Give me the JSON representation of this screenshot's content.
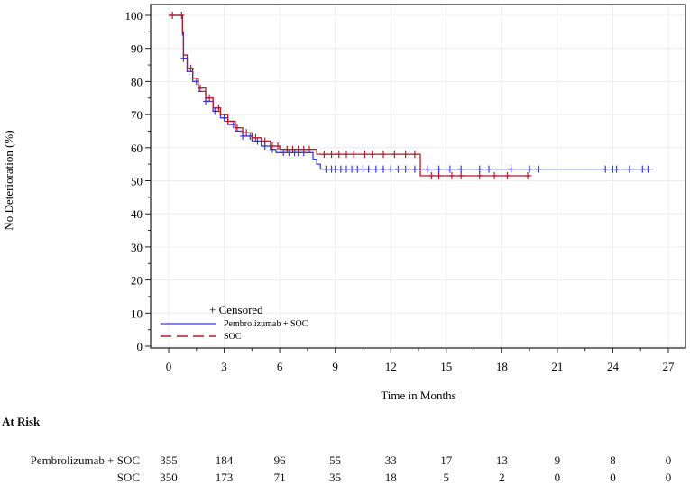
{
  "chart_data": {
    "type": "line",
    "subtype": "kaplan-meier step",
    "xlabel": "Time in Months",
    "ylabel": "No Deterioration (%)",
    "xlim": [
      0,
      27
    ],
    "ylim": [
      0,
      100
    ],
    "xticks": [
      0,
      3,
      6,
      9,
      12,
      15,
      18,
      21,
      24,
      27
    ],
    "yticks": [
      0,
      10,
      20,
      30,
      40,
      50,
      60,
      70,
      80,
      90,
      100
    ],
    "grid": true,
    "legend_position": "bottom-left",
    "legend": {
      "censored_label": "Censored"
    },
    "series": [
      {
        "name": "Pembrolizumab + SOC",
        "color": "#3b3bd6",
        "linestyle": "solid",
        "points": [
          [
            0,
            100
          ],
          [
            0.7,
            100
          ],
          [
            0.75,
            94
          ],
          [
            0.8,
            87
          ],
          [
            1.0,
            83
          ],
          [
            1.3,
            80
          ],
          [
            1.6,
            77
          ],
          [
            2.0,
            74
          ],
          [
            2.4,
            71
          ],
          [
            2.8,
            69
          ],
          [
            3.2,
            67
          ],
          [
            3.6,
            65
          ],
          [
            4.0,
            63.5
          ],
          [
            4.5,
            62
          ],
          [
            5.0,
            60.5
          ],
          [
            5.5,
            59.5
          ],
          [
            5.8,
            58.5
          ],
          [
            7.6,
            58.5
          ],
          [
            7.8,
            56.5
          ],
          [
            8.0,
            55
          ],
          [
            8.2,
            53.5
          ],
          [
            26.2,
            53.5
          ]
        ],
        "censored": [
          0.8,
          1.1,
          1.5,
          2.0,
          2.5,
          3.0,
          3.5,
          4.0,
          4.4,
          4.8,
          5.2,
          5.6,
          6.2,
          6.5,
          6.8,
          7.0,
          7.3,
          8.5,
          8.8,
          9.0,
          9.3,
          9.6,
          9.9,
          10.2,
          10.5,
          10.8,
          11.2,
          11.6,
          12.0,
          12.4,
          12.8,
          13.3,
          14.0,
          14.6,
          15.2,
          15.8,
          16.8,
          17.3,
          18.5,
          19.5,
          20.0,
          23.6,
          24.0,
          24.2,
          24.9,
          25.6,
          25.9
        ]
      },
      {
        "name": "SOC",
        "color": "#b01c2e",
        "linestyle": "dashed",
        "points": [
          [
            0,
            100
          ],
          [
            0.7,
            100
          ],
          [
            0.75,
            95
          ],
          [
            0.8,
            88
          ],
          [
            1.0,
            84
          ],
          [
            1.3,
            81
          ],
          [
            1.6,
            78
          ],
          [
            2.0,
            75
          ],
          [
            2.4,
            72
          ],
          [
            2.8,
            70
          ],
          [
            3.2,
            68
          ],
          [
            3.6,
            66
          ],
          [
            4.0,
            64.5
          ],
          [
            4.5,
            63
          ],
          [
            5.0,
            62
          ],
          [
            5.5,
            60.5
          ],
          [
            6.0,
            59.5
          ],
          [
            7.8,
            59.5
          ],
          [
            8.0,
            58
          ],
          [
            13.5,
            58
          ],
          [
            13.6,
            51.5
          ],
          [
            19.6,
            51.5
          ]
        ],
        "censored": [
          0.2,
          0.7,
          1.2,
          1.7,
          2.2,
          2.7,
          3.2,
          3.7,
          4.2,
          4.7,
          5.2,
          5.6,
          5.9,
          6.4,
          6.7,
          7.0,
          7.3,
          7.6,
          8.4,
          8.8,
          9.2,
          9.6,
          10.0,
          10.6,
          11.0,
          11.6,
          12.2,
          12.8,
          13.3,
          14.2,
          14.6,
          15.3,
          15.8,
          16.8,
          17.6,
          18.3,
          19.4
        ]
      }
    ]
  },
  "at_risk": {
    "title": "At Risk",
    "rows": [
      {
        "label": "Pembrolizumab + SOC",
        "values": [
          "355",
          "184",
          "96",
          "55",
          "33",
          "17",
          "13",
          "9",
          "8",
          "0"
        ]
      },
      {
        "label": "SOC",
        "values": [
          "350",
          "173",
          "71",
          "35",
          "18",
          "5",
          "2",
          "0",
          "0",
          "0"
        ]
      }
    ]
  }
}
